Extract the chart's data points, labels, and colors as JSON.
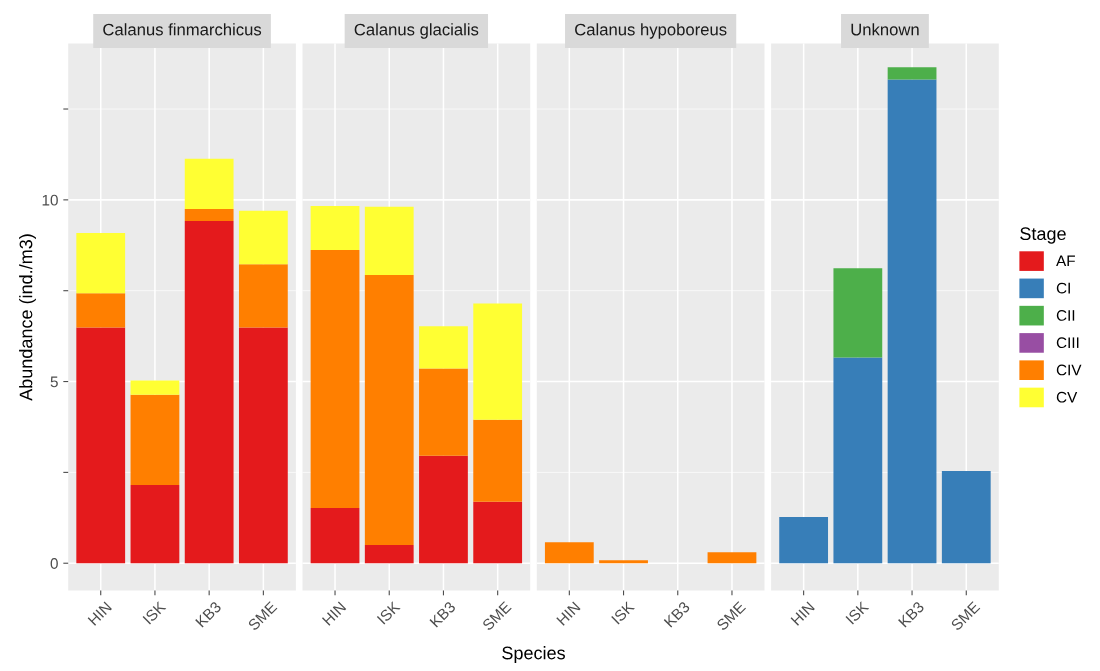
{
  "chart_data": [
    {
      "type": "bar",
      "stacked": true,
      "title": "Calanus finmarchicus",
      "ylabel": "Abundance (ind./m3)",
      "categories": [
        "HIN",
        "ISK",
        "KB3",
        "SME"
      ],
      "ylim": [
        -0.75,
        14.3
      ],
      "yticks": [
        0,
        {
          "value": 2.5,
          "label": null
        },
        5,
        {
          "value": 7.5,
          "label": null
        },
        10,
        {
          "value": 12.5,
          "label": null
        }
      ],
      "grid": true,
      "legend": false,
      "series": [
        {
          "color": "#e41a1c",
          "values": [
            6.49,
            2.15,
            9.42,
            6.49
          ]
        },
        {
          "color": "#ff7f00",
          "values": [
            0.94,
            2.49,
            0.33,
            1.74
          ]
        },
        {
          "color": "#ffff33",
          "values": [
            1.66,
            0.39,
            1.38,
            1.47
          ]
        }
      ]
    },
    {
      "type": "bar",
      "stacked": true,
      "title": "Calanus glacialis",
      "xlabel": "Species",
      "categories": [
        "HIN",
        "ISK",
        "KB3",
        "SME"
      ],
      "ylim": [
        -0.75,
        14.3
      ],
      "yticks": [
        0,
        {
          "value": 2.5,
          "label": null
        },
        5,
        {
          "value": 7.5,
          "label": null
        },
        10,
        {
          "value": 12.5,
          "label": null
        }
      ],
      "grid": true,
      "tick_labels": "x",
      "legend": false,
      "series": [
        {
          "color": "#e41a1c",
          "values": [
            1.52,
            0.5,
            2.96,
            1.69
          ]
        },
        {
          "color": "#ff7f00",
          "values": [
            7.1,
            7.43,
            2.4,
            2.26
          ]
        },
        {
          "color": "#ffff33",
          "values": [
            1.21,
            1.88,
            1.16,
            3.2
          ]
        }
      ]
    },
    {
      "type": "bar",
      "stacked": true,
      "title": "Calanus hypoboreus",
      "categories": [
        "HIN",
        "ISK",
        "KB3",
        "SME"
      ],
      "ylim": [
        -0.75,
        14.3
      ],
      "yticks": [
        0,
        {
          "value": 2.5,
          "label": null
        },
        5,
        {
          "value": 7.5,
          "label": null
        },
        10,
        {
          "value": 12.5,
          "label": null
        }
      ],
      "grid": true,
      "tick_labels": "x",
      "legend": false,
      "series": [
        {
          "color": "#ff7f00",
          "values": [
            0.58,
            0.08,
            0,
            0.3
          ]
        }
      ]
    },
    {
      "type": "bar",
      "stacked": true,
      "title": "Unknown",
      "categories": [
        "HIN",
        "ISK",
        "KB3",
        "SME"
      ],
      "ylim": [
        -0.75,
        14.3
      ],
      "yticks": [
        0,
        {
          "value": 2.5,
          "label": null
        },
        5,
        {
          "value": 7.5,
          "label": null
        },
        10,
        {
          "value": 12.5,
          "label": null
        }
      ],
      "grid": true,
      "tick_labels": "x",
      "legend": "right",
      "legend_title": "Stage",
      "series": [
        {
          "name": "AF",
          "color": "#e41a1c",
          "values": [
            0,
            0,
            0,
            0
          ]
        },
        {
          "name": "CI",
          "color": "#377eb8",
          "values": [
            1.27,
            5.66,
            13.31,
            2.54
          ]
        },
        {
          "name": "CII",
          "color": "#4daf4a",
          "values": [
            0,
            2.46,
            0.34,
            0
          ]
        },
        {
          "name": "CIII",
          "color": "#984ea3",
          "values": [
            0,
            0,
            0,
            0
          ]
        },
        {
          "name": "CIV",
          "color": "#ff7f00",
          "values": [
            0,
            0,
            0,
            0
          ]
        },
        {
          "name": "CV",
          "color": "#ffff33",
          "values": [
            0,
            0,
            0,
            0
          ]
        }
      ]
    }
  ]
}
